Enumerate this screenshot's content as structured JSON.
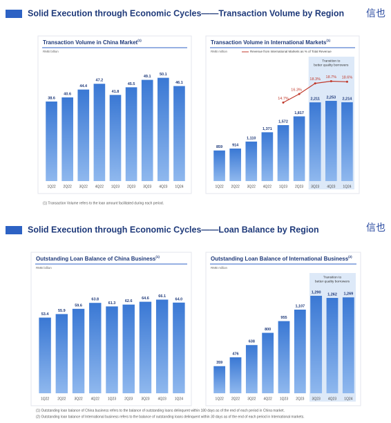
{
  "slides": [
    {
      "title": "Solid Execution through Economic Cycles——Transaction Volume by Region",
      "logo": "信也",
      "footnotes": [
        "(1) Transaction Volume refers to the loan amount facilitated during each period."
      ]
    },
    {
      "title": "Solid Execution through Economic Cycles——Loan Balance by Region",
      "logo": "信也",
      "footnotes": [
        "(1) Outstanding loan balance of China business refers to the balance of outstanding loans delinquent within 180 days as of the end of each period in China market.",
        "(2) Outstanding loan balance of International business refers to the balance of outstanding loans delinquent within 30 days as of the end of each period in International markets."
      ]
    }
  ],
  "chart_data": [
    {
      "type": "bar",
      "title": "Transaction Volume in China Market",
      "title_note": "(1)",
      "unit": "RMB billion",
      "categories": [
        "1Q22",
        "2Q22",
        "3Q22",
        "4Q22",
        "1Q23",
        "2Q23",
        "3Q23",
        "4Q23",
        "1Q24"
      ],
      "series": [
        {
          "name": "Transaction Volume",
          "color": "#3a78d4",
          "values": [
            38.6,
            40.6,
            44.4,
            47.2,
            41.8,
            45.5,
            49.1,
            50.1,
            46.1
          ]
        }
      ],
      "ylim": [
        0,
        57
      ]
    },
    {
      "type": "bar",
      "title": "Transaction Volume in International Markets",
      "title_note": "(1)",
      "unit": "RMB million",
      "categories": [
        "1Q22",
        "2Q22",
        "3Q22",
        "4Q22",
        "1Q23",
        "2Q23",
        "3Q23",
        "4Q23",
        "1Q24"
      ],
      "series": [
        {
          "name": "Transaction Volume",
          "color": "#3a78d4",
          "values": [
            859,
            914,
            1110,
            1371,
            1572,
            1817,
            2211,
            2253,
            2214
          ],
          "value_labels": [
            "859",
            "914",
            "1,110",
            "1,371",
            "1,572",
            "1,817",
            "2,211",
            "2,253",
            "2,214"
          ]
        },
        {
          "name": "Revenue from International Markets as % of Total Revenue",
          "color": "#c0392b",
          "axis": "y2",
          "values": [
            null,
            null,
            null,
            null,
            14.7,
            16.3,
            18.3,
            18.7,
            18.6
          ],
          "value_labels": [
            null,
            null,
            null,
            null,
            "14.7%",
            "16.3%",
            "18.3%",
            "18.7%",
            "18.6%"
          ]
        }
      ],
      "ylim": [
        0,
        3300
      ],
      "y2lim": [
        0,
        22
      ],
      "annotation": [
        "Transition to",
        "better quality borrowers"
      ]
    },
    {
      "type": "bar",
      "title": "Outstanding Loan Balance of China Business",
      "title_note": "(1)",
      "unit": "RMB billion",
      "categories": [
        "1Q22",
        "2Q22",
        "3Q22",
        "4Q22",
        "1Q23",
        "2Q23",
        "3Q23",
        "4Q23",
        "1Q24"
      ],
      "series": [
        {
          "name": "Outstanding Loan Balance",
          "color": "#3a78d4",
          "values": [
            53.4,
            55.9,
            59.6,
            63.8,
            61.3,
            62.6,
            64.6,
            66.1,
            64.0
          ],
          "value_labels": [
            "53.4",
            "55.9",
            "59.6",
            "63.8",
            "61.3",
            "62.6",
            "64.6",
            "66.1",
            "64.0"
          ]
        }
      ],
      "ylim": [
        0,
        80
      ]
    },
    {
      "type": "bar",
      "title": "Outstanding Loan Balance of International Business",
      "title_note": "(2)",
      "unit": "RMB million",
      "categories": [
        "1Q22",
        "2Q22",
        "3Q22",
        "4Q22",
        "1Q23",
        "2Q23",
        "3Q23",
        "4Q23",
        "1Q24"
      ],
      "series": [
        {
          "name": "Outstanding Loan Balance",
          "color": "#3a78d4",
          "values": [
            359,
            476,
            638,
            800,
            955,
            1107,
            1290,
            1262,
            1269
          ],
          "value_labels": [
            "359",
            "476",
            "638",
            "800",
            "955",
            "1,107",
            "1,290",
            "1,262",
            "1,269"
          ]
        }
      ],
      "ylim": [
        0,
        1500
      ],
      "annotation": [
        "Transition to",
        "better quality borrowers"
      ]
    }
  ]
}
